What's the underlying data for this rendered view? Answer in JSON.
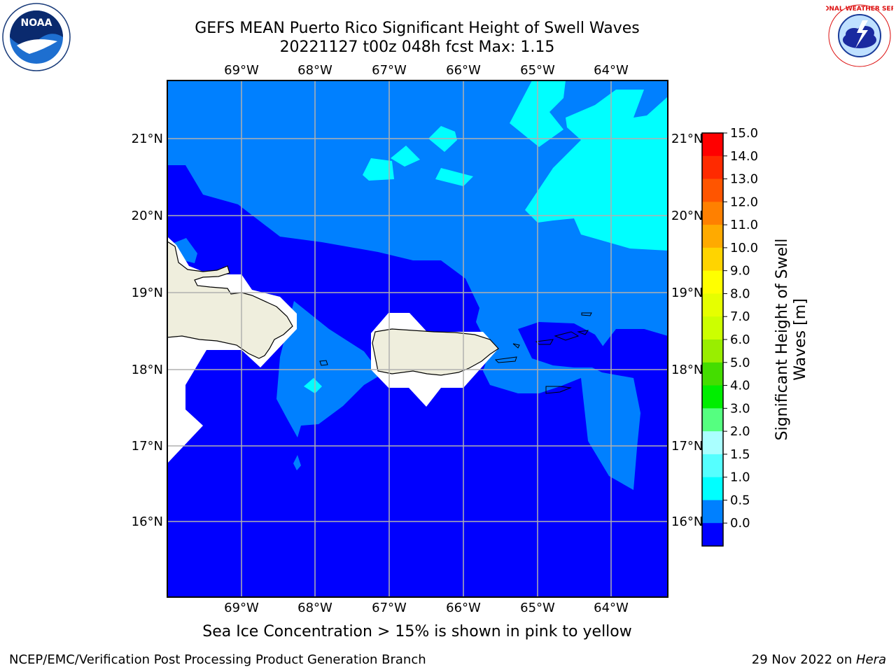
{
  "title": {
    "line1": "GEFS MEAN Puerto Rico Significant Height of Swell Waves",
    "line2": "20221127 t00z 048h fcst   Max: 1.15"
  },
  "map": {
    "lon_labels": [
      "69°W",
      "68°W",
      "67°W",
      "66°W",
      "65°W",
      "64°W"
    ],
    "lat_labels": [
      "21°N",
      "20°N",
      "19°N",
      "18°N",
      "17°N",
      "16°N"
    ]
  },
  "colorbar": {
    "label": "Significant Height of Swell Waves [m]",
    "label_line1": "Significant Height of Swell",
    "label_line2": "Waves [m]",
    "ticks": [
      "15.0",
      "14.0",
      "13.0",
      "12.0",
      "11.0",
      "10.0",
      "9.0",
      "8.0",
      "7.0",
      "6.0",
      "5.0",
      "4.0",
      "3.0",
      "2.0",
      "1.5",
      "1.0",
      "0.5",
      "0.0"
    ],
    "colors": [
      "#ff0000",
      "#ff2a00",
      "#ff5500",
      "#ff8000",
      "#ffaa00",
      "#ffd400",
      "#ffff00",
      "#e6ff00",
      "#ccff00",
      "#99ee00",
      "#44dd00",
      "#00ee00",
      "#55ff80",
      "#aaffff",
      "#55ffff",
      "#00ffff",
      "#0080ff",
      "#0000ff"
    ]
  },
  "note": "Sea Ice Concentration > 15% is shown in pink to yellow",
  "footer": {
    "left": "NCEP/EMC/Verification Post Processing Product Generation Branch",
    "right_prefix": "29 Nov 2022 on ",
    "right_machine": "Hera"
  },
  "logos": {
    "noaa": "NOAA",
    "nws_text": "NATIONAL WEATHER SERVICE"
  }
}
